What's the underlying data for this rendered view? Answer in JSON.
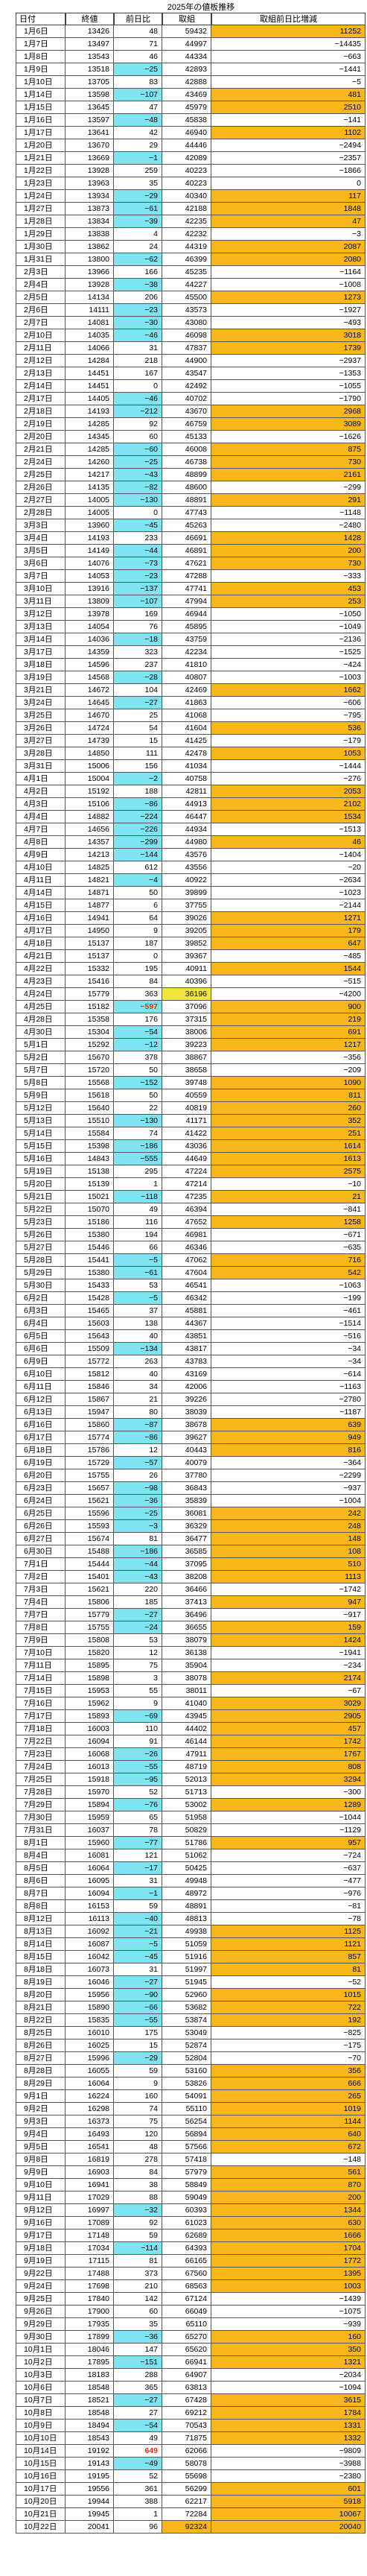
{
  "title": "2025年の値板推移",
  "headers": [
    "日付",
    "終値",
    "前日比",
    "取組",
    "取組前日比増減"
  ],
  "colors": {
    "up": "#ffffff",
    "down": "#7fe4f2",
    "positive_oi_change": "#fab71a",
    "highlight_yellow": "#f1e43a",
    "highlight_orange": "#fab71a",
    "big_change_text": "#e0301e"
  },
  "rows": [
    [
      "1月6日",
      "13426",
      "48",
      "59432",
      "11252"
    ],
    [
      "1月7日",
      "13497",
      "71",
      "44997",
      "−14435"
    ],
    [
      "1月8日",
      "13543",
      "46",
      "44334",
      "−663"
    ],
    [
      "1月9日",
      "13518",
      "−25",
      "42893",
      "−1441"
    ],
    [
      "1月10日",
      "13705",
      "83",
      "42888",
      "−5"
    ],
    [
      "1月14日",
      "13598",
      "−107",
      "43469",
      "481"
    ],
    [
      "1月15日",
      "13645",
      "47",
      "45979",
      "2510"
    ],
    [
      "1月16日",
      "13597",
      "−48",
      "45838",
      "−141"
    ],
    [
      "1月17日",
      "13641",
      "42",
      "46940",
      "1102"
    ],
    [
      "1月20日",
      "13670",
      "29",
      "44446",
      "−2494"
    ],
    [
      "1月21日",
      "13669",
      "−1",
      "42089",
      "−2357"
    ],
    [
      "1月22日",
      "13928",
      "259",
      "40223",
      "−1866"
    ],
    [
      "1月23日",
      "13963",
      "35",
      "40223",
      "0"
    ],
    [
      "1月24日",
      "13934",
      "−29",
      "40340",
      "117"
    ],
    [
      "1月27日",
      "13873",
      "−61",
      "42188",
      "1848"
    ],
    [
      "1月28日",
      "13834",
      "−39",
      "42235",
      "47"
    ],
    [
      "1月29日",
      "13838",
      "4",
      "42232",
      "−3"
    ],
    [
      "1月30日",
      "13862",
      "24",
      "44319",
      "2087"
    ],
    [
      "1月31日",
      "13800",
      "−62",
      "46399",
      "2080"
    ],
    [
      "2月3日",
      "13966",
      "166",
      "45235",
      "−1164"
    ],
    [
      "2月4日",
      "13928",
      "−38",
      "44227",
      "−1008"
    ],
    [
      "2月5日",
      "14134",
      "206",
      "45500",
      "1273"
    ],
    [
      "2月6日",
      "14111",
      "−23",
      "43573",
      "−1927"
    ],
    [
      "2月7日",
      "14081",
      "−30",
      "43080",
      "−493"
    ],
    [
      "2月10日",
      "14035",
      "−46",
      "46098",
      "3018"
    ],
    [
      "2月11日",
      "14066",
      "31",
      "47837",
      "1739"
    ],
    [
      "2月12日",
      "14284",
      "218",
      "44900",
      "−2937"
    ],
    [
      "2月13日",
      "14451",
      "167",
      "43547",
      "−1353"
    ],
    [
      "2月14日",
      "14451",
      "0",
      "42492",
      "−1055"
    ],
    [
      "2月17日",
      "14405",
      "−46",
      "40702",
      "−1790"
    ],
    [
      "2月18日",
      "14193",
      "−212",
      "43670",
      "2968"
    ],
    [
      "2月19日",
      "14285",
      "92",
      "46759",
      "3089"
    ],
    [
      "2月20日",
      "14345",
      "60",
      "45133",
      "−1626"
    ],
    [
      "2月21日",
      "14285",
      "−60",
      "46008",
      "875"
    ],
    [
      "2月24日",
      "14260",
      "−25",
      "46738",
      "730"
    ],
    [
      "2月25日",
      "14217",
      "−43",
      "48899",
      "2161"
    ],
    [
      "2月26日",
      "14135",
      "−82",
      "48600",
      "−299"
    ],
    [
      "2月27日",
      "14005",
      "−130",
      "48891",
      "291"
    ],
    [
      "2月28日",
      "14005",
      "0",
      "47743",
      "−1148"
    ],
    [
      "3月3日",
      "13960",
      "−45",
      "45263",
      "−2480"
    ],
    [
      "3月4日",
      "14193",
      "233",
      "46691",
      "1428"
    ],
    [
      "3月5日",
      "14149",
      "−44",
      "46891",
      "200"
    ],
    [
      "3月6日",
      "14076",
      "−73",
      "47621",
      "730"
    ],
    [
      "3月7日",
      "14053",
      "−23",
      "47288",
      "−333"
    ],
    [
      "3月10日",
      "13916",
      "−137",
      "47741",
      "453"
    ],
    [
      "3月11日",
      "13809",
      "−107",
      "47994",
      "253"
    ],
    [
      "3月12日",
      "13978",
      "169",
      "46944",
      "−1050"
    ],
    [
      "3月13日",
      "14054",
      "76",
      "45895",
      "−1049"
    ],
    [
      "3月14日",
      "14036",
      "−18",
      "43759",
      "−2136"
    ],
    [
      "3月17日",
      "14359",
      "323",
      "42234",
      "−1525"
    ],
    [
      "3月18日",
      "14596",
      "237",
      "41810",
      "−424"
    ],
    [
      "3月19日",
      "14568",
      "−28",
      "40807",
      "−1003"
    ],
    [
      "3月21日",
      "14672",
      "104",
      "42469",
      "1662"
    ],
    [
      "3月24日",
      "14645",
      "−27",
      "41863",
      "−606"
    ],
    [
      "3月25日",
      "14670",
      "25",
      "41068",
      "−795"
    ],
    [
      "3月26日",
      "14724",
      "54",
      "41604",
      "536"
    ],
    [
      "3月27日",
      "14739",
      "15",
      "41425",
      "−179"
    ],
    [
      "3月28日",
      "14850",
      "111",
      "42478",
      "1053"
    ],
    [
      "3月31日",
      "15006",
      "156",
      "41034",
      "−1444"
    ],
    [
      "4月1日",
      "15004",
      "−2",
      "40758",
      "−276"
    ],
    [
      "4月2日",
      "15192",
      "188",
      "42811",
      "2053"
    ],
    [
      "4月3日",
      "15106",
      "−86",
      "44913",
      "2102"
    ],
    [
      "4月4日",
      "14882",
      "−224",
      "46447",
      "1534"
    ],
    [
      "4月7日",
      "14656",
      "−226",
      "44934",
      "−1513"
    ],
    [
      "4月8日",
      "14357",
      "−299",
      "44980",
      "46"
    ],
    [
      "4月9日",
      "14213",
      "−144",
      "43576",
      "−1404"
    ],
    [
      "4月10日",
      "14825",
      "612",
      "43556",
      "−20"
    ],
    [
      "4月11日",
      "14821",
      "−4",
      "40922",
      "−2634"
    ],
    [
      "4月14日",
      "14871",
      "50",
      "39899",
      "−1023"
    ],
    [
      "4月15日",
      "14877",
      "6",
      "37755",
      "−2144"
    ],
    [
      "4月16日",
      "14941",
      "64",
      "39026",
      "1271"
    ],
    [
      "4月17日",
      "14950",
      "9",
      "39205",
      "179"
    ],
    [
      "4月18日",
      "15137",
      "187",
      "39852",
      "647"
    ],
    [
      "4月21日",
      "15137",
      "0",
      "39367",
      "−485"
    ],
    [
      "4月22日",
      "15332",
      "195",
      "40911",
      "1544"
    ],
    [
      "4月23日",
      "15416",
      "84",
      "40396",
      "−515"
    ],
    [
      "4月24日",
      "15779",
      "363",
      "36196",
      "−4200"
    ],
    [
      "4月25日",
      "15182",
      "−597",
      "37096",
      "900"
    ],
    [
      "4月28日",
      "15358",
      "176",
      "37315",
      "219"
    ],
    [
      "4月30日",
      "15304",
      "−54",
      "38006",
      "691"
    ],
    [
      "5月1日",
      "15292",
      "−12",
      "39223",
      "1217"
    ],
    [
      "5月2日",
      "15670",
      "378",
      "38867",
      "−356"
    ],
    [
      "5月7日",
      "15720",
      "50",
      "38658",
      "−209"
    ],
    [
      "5月8日",
      "15568",
      "−152",
      "39748",
      "1090"
    ],
    [
      "5月9日",
      "15618",
      "50",
      "40559",
      "811"
    ],
    [
      "5月12日",
      "15640",
      "22",
      "40819",
      "260"
    ],
    [
      "5月13日",
      "15510",
      "−130",
      "41171",
      "352"
    ],
    [
      "5月14日",
      "15584",
      "74",
      "41422",
      "251"
    ],
    [
      "5月15日",
      "15398",
      "−186",
      "43036",
      "1614"
    ],
    [
      "5月16日",
      "14843",
      "−555",
      "44649",
      "1613"
    ],
    [
      "5月19日",
      "15138",
      "295",
      "47224",
      "2575"
    ],
    [
      "5月20日",
      "15139",
      "1",
      "47214",
      "−10"
    ],
    [
      "5月21日",
      "15021",
      "−118",
      "47235",
      "21"
    ],
    [
      "5月22日",
      "15070",
      "49",
      "46394",
      "−841"
    ],
    [
      "5月23日",
      "15186",
      "116",
      "47652",
      "1258"
    ],
    [
      "5月26日",
      "15380",
      "194",
      "46981",
      "−671"
    ],
    [
      "5月27日",
      "15446",
      "66",
      "46346",
      "−635"
    ],
    [
      "5月28日",
      "15441",
      "−5",
      "47062",
      "716"
    ],
    [
      "5月29日",
      "15380",
      "−61",
      "47604",
      "542"
    ],
    [
      "5月30日",
      "15433",
      "53",
      "46541",
      "−1063"
    ],
    [
      "6月2日",
      "15428",
      "−5",
      "46342",
      "−199"
    ],
    [
      "6月3日",
      "15465",
      "37",
      "45881",
      "−461"
    ],
    [
      "6月4日",
      "15603",
      "138",
      "44367",
      "−1514"
    ],
    [
      "6月5日",
      "15643",
      "40",
      "43851",
      "−516"
    ],
    [
      "6月6日",
      "15509",
      "−134",
      "43817",
      "−34"
    ],
    [
      "6月9日",
      "15772",
      "263",
      "43783",
      "−34"
    ],
    [
      "6月10日",
      "15812",
      "40",
      "43169",
      "−614"
    ],
    [
      "6月11日",
      "15846",
      "34",
      "42006",
      "−1163"
    ],
    [
      "6月12日",
      "15867",
      "21",
      "39226",
      "−2780"
    ],
    [
      "6月13日",
      "15947",
      "80",
      "38039",
      "−1187"
    ],
    [
      "6月16日",
      "15860",
      "−87",
      "38678",
      "639"
    ],
    [
      "6月17日",
      "15774",
      "−86",
      "39627",
      "949"
    ],
    [
      "6月18日",
      "15786",
      "12",
      "40443",
      "816"
    ],
    [
      "6月19日",
      "15729",
      "−57",
      "40079",
      "−364"
    ],
    [
      "6月20日",
      "15755",
      "26",
      "37780",
      "−2299"
    ],
    [
      "6月23日",
      "15657",
      "−98",
      "36843",
      "−937"
    ],
    [
      "6月24日",
      "15621",
      "−36",
      "35839",
      "−1004"
    ],
    [
      "6月25日",
      "15596",
      "−25",
      "36081",
      "242"
    ],
    [
      "6月26日",
      "15593",
      "−3",
      "36329",
      "248"
    ],
    [
      "6月27日",
      "15674",
      "81",
      "36477",
      "148"
    ],
    [
      "6月30日",
      "15488",
      "−186",
      "36585",
      "108"
    ],
    [
      "7月1日",
      "15444",
      "−44",
      "37095",
      "510"
    ],
    [
      "7月2日",
      "15401",
      "−43",
      "38208",
      "1113"
    ],
    [
      "7月3日",
      "15621",
      "220",
      "36466",
      "−1742"
    ],
    [
      "7月4日",
      "15806",
      "185",
      "37413",
      "947"
    ],
    [
      "7月7日",
      "15779",
      "−27",
      "36496",
      "−917"
    ],
    [
      "7月8日",
      "15755",
      "−24",
      "36655",
      "159"
    ],
    [
      "7月9日",
      "15808",
      "53",
      "38079",
      "1424"
    ],
    [
      "7月10日",
      "15820",
      "12",
      "36138",
      "−1941"
    ],
    [
      "7月11日",
      "15895",
      "75",
      "35904",
      "−234"
    ],
    [
      "7月14日",
      "15898",
      "3",
      "38078",
      "2174"
    ],
    [
      "7月15日",
      "15953",
      "55",
      "38011",
      "−67"
    ],
    [
      "7月16日",
      "15962",
      "9",
      "41040",
      "3029"
    ],
    [
      "7月17日",
      "15893",
      "−69",
      "43945",
      "2905"
    ],
    [
      "7月18日",
      "16003",
      "110",
      "44402",
      "457"
    ],
    [
      "7月22日",
      "16094",
      "91",
      "46144",
      "1742"
    ],
    [
      "7月23日",
      "16068",
      "−26",
      "47911",
      "1767"
    ],
    [
      "7月24日",
      "16013",
      "−55",
      "48719",
      "808"
    ],
    [
      "7月25日",
      "15918",
      "−95",
      "52013",
      "3294"
    ],
    [
      "7月28日",
      "15970",
      "52",
      "51713",
      "−300"
    ],
    [
      "7月29日",
      "15894",
      "−76",
      "53002",
      "1289"
    ],
    [
      "7月30日",
      "15959",
      "65",
      "51958",
      "−1044"
    ],
    [
      "7月31日",
      "16037",
      "78",
      "50829",
      "−1129"
    ],
    [
      "8月1日",
      "15960",
      "−77",
      "51786",
      "957"
    ],
    [
      "8月4日",
      "16081",
      "121",
      "51062",
      "−724"
    ],
    [
      "8月5日",
      "16064",
      "−17",
      "50425",
      "−637"
    ],
    [
      "8月6日",
      "16095",
      "31",
      "49948",
      "−477"
    ],
    [
      "8月7日",
      "16094",
      "−1",
      "48972",
      "−976"
    ],
    [
      "8月8日",
      "16153",
      "59",
      "48891",
      "−81"
    ],
    [
      "8月12日",
      "16113",
      "−40",
      "48813",
      "−78"
    ],
    [
      "8月13日",
      "16092",
      "−21",
      "49938",
      "1125"
    ],
    [
      "8月14日",
      "16087",
      "−5",
      "51059",
      "1121"
    ],
    [
      "8月15日",
      "16042",
      "−45",
      "51916",
      "857"
    ],
    [
      "8月18日",
      "16073",
      "31",
      "51997",
      "81"
    ],
    [
      "8月19日",
      "16046",
      "−27",
      "51945",
      "−52"
    ],
    [
      "8月20日",
      "15956",
      "−90",
      "52960",
      "1015"
    ],
    [
      "8月21日",
      "15890",
      "−66",
      "53682",
      "722"
    ],
    [
      "8月22日",
      "15835",
      "−55",
      "53874",
      "192"
    ],
    [
      "8月25日",
      "16010",
      "175",
      "53049",
      "−825"
    ],
    [
      "8月26日",
      "16025",
      "15",
      "52874",
      "−175"
    ],
    [
      "8月27日",
      "15996",
      "−29",
      "52804",
      "−70"
    ],
    [
      "8月28日",
      "16055",
      "59",
      "53160",
      "356"
    ],
    [
      "8月29日",
      "16064",
      "9",
      "53826",
      "666"
    ],
    [
      "9月1日",
      "16224",
      "160",
      "54091",
      "265"
    ],
    [
      "9月2日",
      "16298",
      "74",
      "55110",
      "1019"
    ],
    [
      "9月3日",
      "16373",
      "75",
      "56254",
      "1144"
    ],
    [
      "9月4日",
      "16493",
      "120",
      "56894",
      "640"
    ],
    [
      "9月5日",
      "16541",
      "48",
      "57566",
      "672"
    ],
    [
      "9月8日",
      "16819",
      "278",
      "57418",
      "−148"
    ],
    [
      "9月9日",
      "16903",
      "84",
      "57979",
      "561"
    ],
    [
      "9月10日",
      "16941",
      "38",
      "58849",
      "870"
    ],
    [
      "9月11日",
      "17029",
      "88",
      "59049",
      "200"
    ],
    [
      "9月12日",
      "16997",
      "−32",
      "60393",
      "1344"
    ],
    [
      "9月16日",
      "17089",
      "92",
      "61023",
      "630"
    ],
    [
      "9月17日",
      "17148",
      "59",
      "62689",
      "1666"
    ],
    [
      "9月18日",
      "17034",
      "−114",
      "64393",
      "1704"
    ],
    [
      "9月19日",
      "17115",
      "81",
      "66165",
      "1772"
    ],
    [
      "9月22日",
      "17488",
      "373",
      "67560",
      "1395"
    ],
    [
      "9月24日",
      "17698",
      "210",
      "68563",
      "1003"
    ],
    [
      "9月25日",
      "17840",
      "142",
      "67124",
      "−1439"
    ],
    [
      "9月26日",
      "17900",
      "60",
      "66049",
      "−1075"
    ],
    [
      "9月29日",
      "17935",
      "35",
      "65110",
      "−939"
    ],
    [
      "9月30日",
      "17899",
      "−36",
      "65270",
      "160"
    ],
    [
      "10月1日",
      "18046",
      "147",
      "65620",
      "350"
    ],
    [
      "10月2日",
      "17895",
      "−151",
      "66941",
      "1321"
    ],
    [
      "10月3日",
      "18183",
      "288",
      "64907",
      "−2034"
    ],
    [
      "10月6日",
      "18548",
      "365",
      "63813",
      "−1094"
    ],
    [
      "10月7日",
      "18521",
      "−27",
      "67428",
      "3615"
    ],
    [
      "10月8日",
      "18548",
      "27",
      "69212",
      "1784"
    ],
    [
      "10月9日",
      "18494",
      "−54",
      "70543",
      "1331"
    ],
    [
      "10月10日",
      "18543",
      "49",
      "71875",
      "1332"
    ],
    [
      "10月14日",
      "19192",
      "649",
      "62066",
      "−9809"
    ],
    [
      "10月15日",
      "19143",
      "−49",
      "58078",
      "−3988"
    ],
    [
      "10月16日",
      "19195",
      "52",
      "55698",
      "−2380"
    ],
    [
      "10月17日",
      "19556",
      "361",
      "56299",
      "601"
    ],
    [
      "10月20日",
      "19944",
      "388",
      "62217",
      "5918"
    ],
    [
      "10月21日",
      "19945",
      "1",
      "72284",
      "10067"
    ],
    [
      "10月22日",
      "20041",
      "96",
      "92324",
      "20040"
    ]
  ]
}
